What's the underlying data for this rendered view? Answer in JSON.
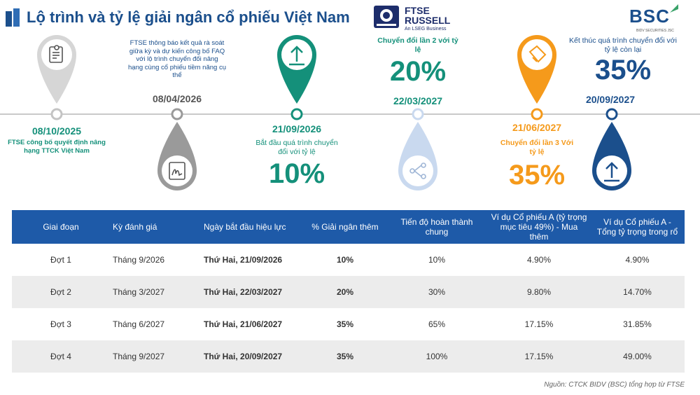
{
  "header": {
    "title": "Lộ trình và tỷ lệ giải ngân cổ phiếu Việt Nam",
    "ftse_logo": {
      "line1": "FTSE",
      "line2": "RUSSELL",
      "sub": "An LSEG Business"
    },
    "bsc_logo": {
      "name": "BSC",
      "sub": "BIDV SECURITIES JSC"
    }
  },
  "timeline": {
    "m1": {
      "date": "08/10/2025",
      "desc": "FTSE công bố quyết định nâng hạng TTCK Việt Nam",
      "icon": "document-icon",
      "color": "#b8b8b8"
    },
    "m2": {
      "date": "08/04/2026",
      "desc": "FTSE thông báo kết quả rà soát giữa kỳ và dự kiến công bố FAQ với lộ trình chuyển đổi nâng hạng cùng cổ phiếu tiềm năng cụ thể",
      "icon": "signature-icon",
      "color": "#9a9a9a"
    },
    "m3": {
      "date": "21/09/2026",
      "desc": "Bắt đầu quá trình chuyển đổi với tỷ lệ",
      "pct": "10%",
      "icon": "upload-icon",
      "color": "#14907a"
    },
    "m4": {
      "date": "22/03/2027",
      "desc": "Chuyển đổi lần 2 với tỷ lệ",
      "pct": "20%",
      "icon": "network-icon",
      "color": "#c9d9ef"
    },
    "m5": {
      "date": "21/06/2027",
      "desc": "Chuyển đổi lần 3 Với tỷ lệ",
      "pct": "35%",
      "icon": "tag-icon",
      "color": "#f59a1b"
    },
    "m6": {
      "date": "20/09/2027",
      "desc": "Kết thúc quá trình chuyển đổi với tỷ lệ còn lại",
      "pct": "35%",
      "icon": "upload-icon",
      "color": "#1b4f8c"
    }
  },
  "table": {
    "headers": [
      "Giai đoạn",
      "Kỳ đánh giá",
      "Ngày bắt đầu hiệu lực",
      "% Giải ngân thêm",
      "Tiến độ hoàn thành chung",
      "Ví dụ Cổ phiếu A (tỷ trọng mục tiêu 49%) - Mua thêm",
      "Ví dụ Cổ phiếu A - Tổng tỷ trọng trong rổ"
    ],
    "rows": [
      [
        "Đợt 1",
        "Tháng 9/2026",
        "Thứ Hai, 21/09/2026",
        "10%",
        "10%",
        "4.90%",
        "4.90%"
      ],
      [
        "Đợt 2",
        "Tháng 3/2027",
        "Thứ Hai, 22/03/2027",
        "20%",
        "30%",
        "9.80%",
        "14.70%"
      ],
      [
        "Đợt 3",
        "Tháng 6/2027",
        "Thứ Hai, 21/06/2027",
        "35%",
        "65%",
        "17.15%",
        "31.85%"
      ],
      [
        "Đợt 4",
        "Tháng 9/2027",
        "Thứ Hai, 20/09/2027",
        "35%",
        "100%",
        "17.15%",
        "49.00%"
      ]
    ]
  },
  "source": "Nguồn: CTCK BIDV (BSC) tổng hợp từ FTSE"
}
